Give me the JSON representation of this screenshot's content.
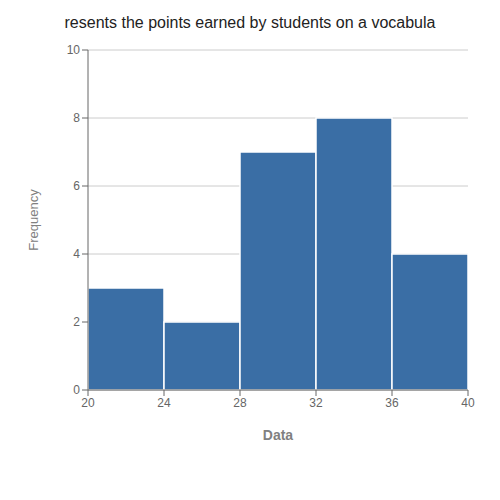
{
  "chart_data": {
    "type": "histogram",
    "title": "resents the points earned by students on a vocabula",
    "xlabel": "Data",
    "ylabel": "Frequency",
    "bins": [
      20,
      24,
      28,
      32,
      36,
      40
    ],
    "values": [
      3,
      2,
      7,
      8,
      4
    ],
    "color": "#3A6EA5",
    "xlim": [
      20,
      40
    ],
    "ylim": [
      0,
      10
    ],
    "xticks": [
      20,
      24,
      28,
      32,
      36,
      40
    ],
    "yticks": [
      0,
      2,
      4,
      6,
      8,
      10
    ],
    "grid": true
  }
}
